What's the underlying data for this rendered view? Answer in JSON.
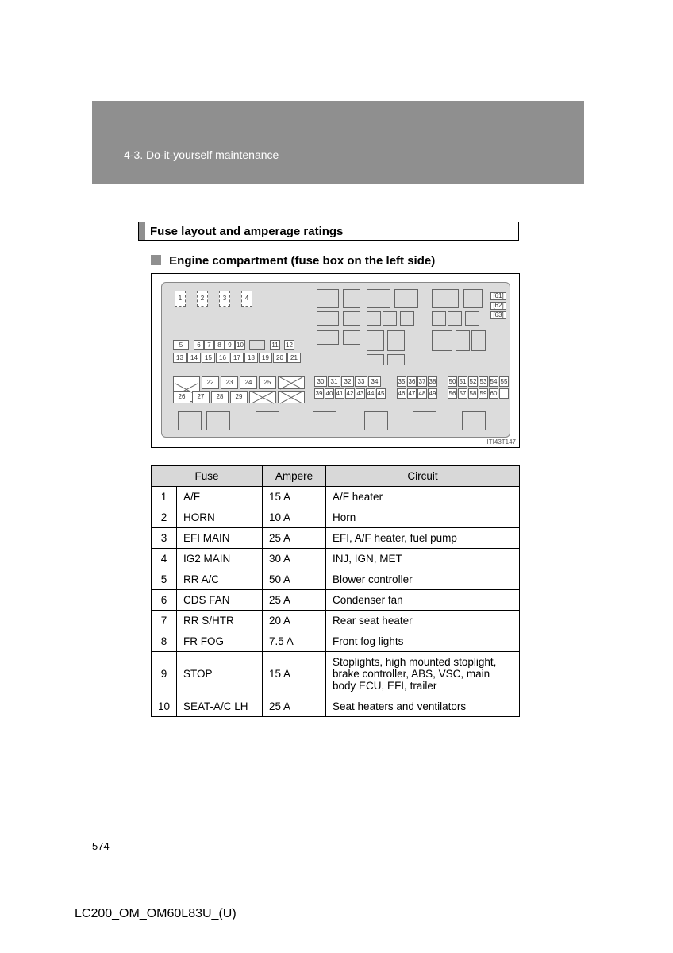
{
  "header": {
    "breadcrumb": "4-3. Do-it-yourself maintenance"
  },
  "section": {
    "title": "Fuse layout and amperage ratings"
  },
  "subhead": {
    "text": "Engine compartment (fuse box on the left side)"
  },
  "diagram": {
    "label": "ITI43T147",
    "top_fuses": [
      "1",
      "2",
      "3",
      "4"
    ],
    "side_labels": [
      "61",
      "62",
      "63"
    ],
    "row_a": [
      "5",
      "6",
      "7",
      "8",
      "9",
      "10",
      "11",
      "12"
    ],
    "row_b": [
      "13",
      "14",
      "15",
      "16",
      "17",
      "18",
      "19",
      "20",
      "21"
    ],
    "row_c_top": [
      "22",
      "23",
      "24",
      "25"
    ],
    "row_c_bot": [
      "26",
      "27",
      "28",
      "29"
    ],
    "block_d_top": [
      "30",
      "31",
      "32",
      "33",
      "34"
    ],
    "block_d_bot": [
      "39",
      "40",
      "41",
      "42",
      "43",
      "44",
      "45"
    ],
    "block_e_top": [
      "35",
      "36",
      "37",
      "38"
    ],
    "block_e_bot": [
      "46",
      "47",
      "48",
      "49"
    ],
    "block_f_top": [
      "50",
      "51",
      "52",
      "53",
      "54",
      "55"
    ],
    "block_f_bot": [
      "56",
      "57",
      "58",
      "59",
      "60"
    ]
  },
  "table": {
    "headers": {
      "fuse": "Fuse",
      "ampere": "Ampere",
      "circuit": "Circuit"
    },
    "rows": [
      {
        "n": "1",
        "fuse": "A/F",
        "amp": "15 A",
        "circuit": "A/F heater"
      },
      {
        "n": "2",
        "fuse": "HORN",
        "amp": "10 A",
        "circuit": "Horn"
      },
      {
        "n": "3",
        "fuse": "EFI MAIN",
        "amp": "25 A",
        "circuit": "EFI, A/F heater, fuel pump"
      },
      {
        "n": "4",
        "fuse": "IG2 MAIN",
        "amp": "30 A",
        "circuit": "INJ, IGN, MET"
      },
      {
        "n": "5",
        "fuse": "RR A/C",
        "amp": "50 A",
        "circuit": "Blower controller"
      },
      {
        "n": "6",
        "fuse": "CDS FAN",
        "amp": "25 A",
        "circuit": "Condenser fan"
      },
      {
        "n": "7",
        "fuse": "RR S/HTR",
        "amp": "20 A",
        "circuit": "Rear seat heater"
      },
      {
        "n": "8",
        "fuse": "FR FOG",
        "amp": "7.5 A",
        "circuit": "Front fog lights"
      },
      {
        "n": "9",
        "fuse": "STOP",
        "amp": "15 A",
        "circuit": "Stoplights, high mounted stoplight, brake controller, ABS, VSC, main body ECU, EFI, trailer"
      },
      {
        "n": "10",
        "fuse": "SEAT-A/C LH",
        "amp": "25 A",
        "circuit": "Seat heaters and ventilators"
      }
    ]
  },
  "page_number": "574",
  "footer_code": "LC200_OM_OM60L83U_(U)"
}
